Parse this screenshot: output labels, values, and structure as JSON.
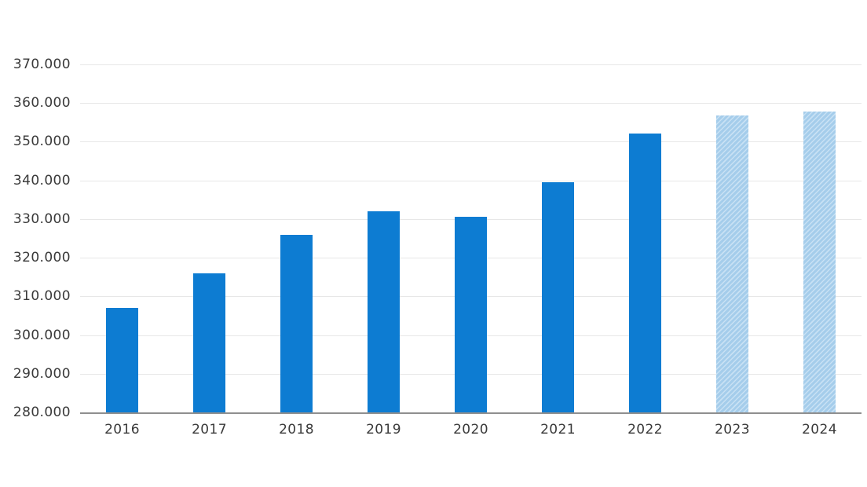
{
  "chart_data": {
    "type": "bar",
    "title": "",
    "xlabel": "",
    "ylabel": "",
    "categories": [
      "2016",
      "2017",
      "2018",
      "2019",
      "2020",
      "2021",
      "2022",
      "2023",
      "2024"
    ],
    "values": [
      307000,
      316000,
      326000,
      332000,
      330600,
      339500,
      352200,
      356700,
      357800
    ],
    "is_forecast": [
      false,
      false,
      false,
      false,
      false,
      false,
      false,
      true,
      true
    ],
    "forecast_years": [
      "2023",
      "2024"
    ],
    "y_axis": {
      "min": 280000,
      "max": 370000,
      "tick_step": 10000,
      "tick_labels": [
        "280.000",
        "290.000",
        "300.000",
        "310.000",
        "320.000",
        "330.000",
        "340.000",
        "350.000",
        "360.000",
        "370.000"
      ]
    },
    "grid": "horizontal",
    "legend": "none",
    "number_format": "de-DE (dot thousands separator)"
  },
  "colors": {
    "background": "#ffffff",
    "bar": "#0d7cd2",
    "forecast_base": "#a5cdeb",
    "forecast_stripe": "#c8e1f4",
    "gridline": "#e7e7e7",
    "axis_line": "#8f8f8f",
    "label_text": "#3a3a3a"
  }
}
